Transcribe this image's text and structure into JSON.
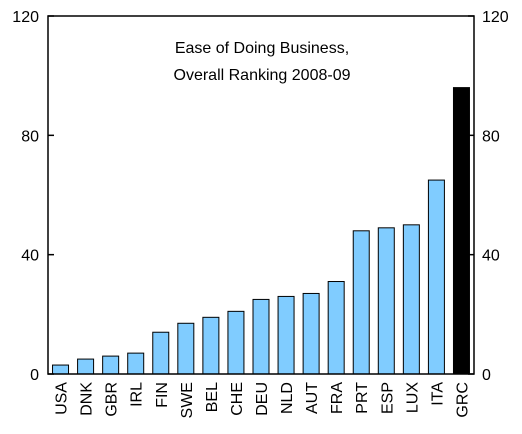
{
  "chart_data": {
    "type": "bar",
    "title_lines": [
      "Ease of Doing Business,",
      "Overall Ranking 2008-09"
    ],
    "categories": [
      "USA",
      "DNK",
      "GBR",
      "IRL",
      "FIN",
      "SWE",
      "BEL",
      "CHE",
      "DEU",
      "NLD",
      "AUT",
      "FRA",
      "PRT",
      "ESP",
      "LUX",
      "ITA",
      "GRC"
    ],
    "values": [
      3,
      5,
      6,
      7,
      14,
      17,
      19,
      21,
      25,
      26,
      27,
      31,
      48,
      49,
      50,
      65,
      96
    ],
    "highlight_category": "GRC",
    "ylim": [
      0,
      120
    ],
    "yticks": [
      "0",
      "40",
      "80",
      "120"
    ],
    "ytick_values": [
      0,
      40,
      80,
      120
    ],
    "secondary_y_axis": true,
    "grid": false,
    "colors": {
      "bar": "#80ccff",
      "highlight": "#000000",
      "axis": "#000000"
    }
  }
}
